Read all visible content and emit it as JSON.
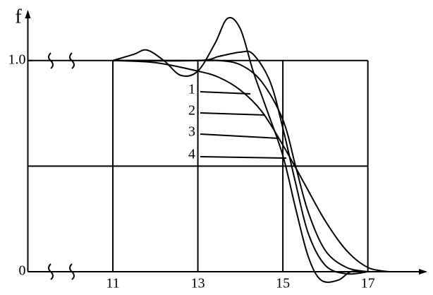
{
  "chart_data": {
    "type": "line",
    "y_label": "f",
    "xlim": [
      9,
      18.4
    ],
    "ylim": [
      0,
      1.24
    ],
    "xticks": [
      11,
      13,
      15,
      17
    ],
    "yticks": [
      0,
      {
        "value": 1,
        "label": "1.0"
      }
    ],
    "ygrid": [
      0.5,
      1
    ],
    "grid": true,
    "color": "#000000",
    "series": [
      {
        "name": "1",
        "x": [
          11,
          12,
          13,
          13.5,
          14,
          14.5,
          15,
          15.5,
          16,
          16.5,
          17,
          17.5
        ],
        "values": [
          1.0,
          0.99,
          0.95,
          0.92,
          0.86,
          0.76,
          0.6,
          0.42,
          0.24,
          0.1,
          0.02,
          0
        ]
      },
      {
        "name": "2",
        "x": [
          11,
          13,
          13.5,
          14,
          14.5,
          15,
          15.3,
          15.6,
          16,
          16.5,
          17
        ],
        "values": [
          1,
          1,
          1.0,
          0.98,
          0.9,
          0.72,
          0.5,
          0.28,
          0.1,
          0.02,
          0
        ]
      },
      {
        "name": "3",
        "x": [
          11,
          13,
          13.5,
          14,
          14.3,
          14.7,
          15,
          15.3,
          15.6,
          16,
          16.5,
          17
        ],
        "values": [
          1,
          1,
          1.02,
          1.04,
          1.03,
          0.9,
          0.68,
          0.42,
          0.18,
          0.03,
          -0.01,
          0
        ]
      },
      {
        "name": "4",
        "x": [
          11,
          11.5,
          11.8,
          12.2,
          12.6,
          13,
          13.4,
          13.7,
          14,
          14.3,
          14.6,
          15,
          15.3,
          15.6,
          15.9,
          16.3,
          16.6,
          17
        ],
        "values": [
          1,
          1.03,
          1.05,
          1.0,
          0.93,
          0.95,
          1.08,
          1.2,
          1.15,
          0.95,
          0.78,
          0.55,
          0.3,
          0.07,
          -0.04,
          -0.04,
          0.0,
          0
        ]
      }
    ]
  }
}
